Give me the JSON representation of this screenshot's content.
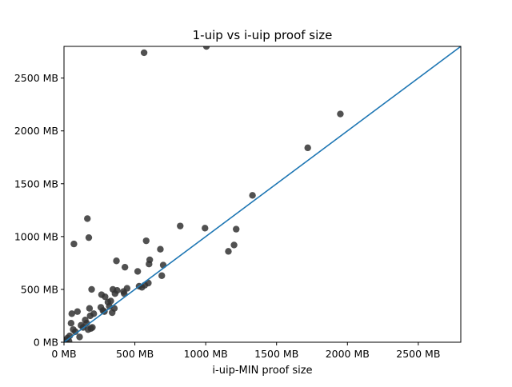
{
  "chart_data": {
    "type": "scatter",
    "title": "1-uip vs i-uip proof size",
    "xlabel": "i-uip-MIN proof size",
    "ylabel": "",
    "xlim": [
      0,
      2800
    ],
    "ylim": [
      0,
      2800
    ],
    "x_ticks": [
      {
        "value": 0,
        "label": "0 MB"
      },
      {
        "value": 500,
        "label": "500 MB"
      },
      {
        "value": 1000,
        "label": "1000 MB"
      },
      {
        "value": 1500,
        "label": "1500 MB"
      },
      {
        "value": 2000,
        "label": "2000 MB"
      },
      {
        "value": 2500,
        "label": "2500 MB"
      }
    ],
    "y_ticks": [
      {
        "value": 0,
        "label": "0 MB"
      },
      {
        "value": 500,
        "label": "500 MB"
      },
      {
        "value": 1000,
        "label": "1000 MB"
      },
      {
        "value": 1500,
        "label": "1500 MB"
      },
      {
        "value": 2000,
        "label": "2000 MB"
      },
      {
        "value": 2500,
        "label": "2500 MB"
      }
    ],
    "grid": false,
    "legend": "none",
    "point_color": "#333333",
    "line_color": "#1f77b4",
    "reference_line": {
      "from": [
        0,
        0
      ],
      "to": [
        2800,
        2800
      ]
    },
    "points": [
      {
        "x": 5,
        "y": 5
      },
      {
        "x": 15,
        "y": 20
      },
      {
        "x": 25,
        "y": 40
      },
      {
        "x": 35,
        "y": 10
      },
      {
        "x": 40,
        "y": 60
      },
      {
        "x": 50,
        "y": 180
      },
      {
        "x": 55,
        "y": 270
      },
      {
        "x": 65,
        "y": 120
      },
      {
        "x": 70,
        "y": 930
      },
      {
        "x": 80,
        "y": 100
      },
      {
        "x": 95,
        "y": 290
      },
      {
        "x": 110,
        "y": 50
      },
      {
        "x": 120,
        "y": 160
      },
      {
        "x": 135,
        "y": 140
      },
      {
        "x": 150,
        "y": 210
      },
      {
        "x": 160,
        "y": 180
      },
      {
        "x": 165,
        "y": 1170
      },
      {
        "x": 170,
        "y": 120
      },
      {
        "x": 175,
        "y": 990
      },
      {
        "x": 180,
        "y": 320
      },
      {
        "x": 185,
        "y": 250
      },
      {
        "x": 190,
        "y": 130
      },
      {
        "x": 195,
        "y": 500
      },
      {
        "x": 200,
        "y": 140
      },
      {
        "x": 210,
        "y": 270
      },
      {
        "x": 260,
        "y": 330
      },
      {
        "x": 265,
        "y": 450
      },
      {
        "x": 275,
        "y": 300
      },
      {
        "x": 285,
        "y": 290
      },
      {
        "x": 290,
        "y": 430
      },
      {
        "x": 310,
        "y": 380
      },
      {
        "x": 320,
        "y": 340
      },
      {
        "x": 330,
        "y": 390
      },
      {
        "x": 340,
        "y": 280
      },
      {
        "x": 345,
        "y": 500
      },
      {
        "x": 355,
        "y": 320
      },
      {
        "x": 360,
        "y": 460
      },
      {
        "x": 370,
        "y": 770
      },
      {
        "x": 375,
        "y": 490
      },
      {
        "x": 420,
        "y": 480
      },
      {
        "x": 425,
        "y": 460
      },
      {
        "x": 430,
        "y": 710
      },
      {
        "x": 445,
        "y": 510
      },
      {
        "x": 520,
        "y": 670
      },
      {
        "x": 530,
        "y": 530
      },
      {
        "x": 550,
        "y": 520
      },
      {
        "x": 565,
        "y": 2740
      },
      {
        "x": 570,
        "y": 540
      },
      {
        "x": 580,
        "y": 960
      },
      {
        "x": 595,
        "y": 560
      },
      {
        "x": 600,
        "y": 740
      },
      {
        "x": 605,
        "y": 780
      },
      {
        "x": 680,
        "y": 880
      },
      {
        "x": 690,
        "y": 630
      },
      {
        "x": 700,
        "y": 730
      },
      {
        "x": 820,
        "y": 1100
      },
      {
        "x": 995,
        "y": 1080
      },
      {
        "x": 1005,
        "y": 2800
      },
      {
        "x": 1160,
        "y": 860
      },
      {
        "x": 1200,
        "y": 920
      },
      {
        "x": 1215,
        "y": 1070
      },
      {
        "x": 1330,
        "y": 1390
      },
      {
        "x": 1720,
        "y": 1840
      },
      {
        "x": 1950,
        "y": 2160
      }
    ]
  }
}
